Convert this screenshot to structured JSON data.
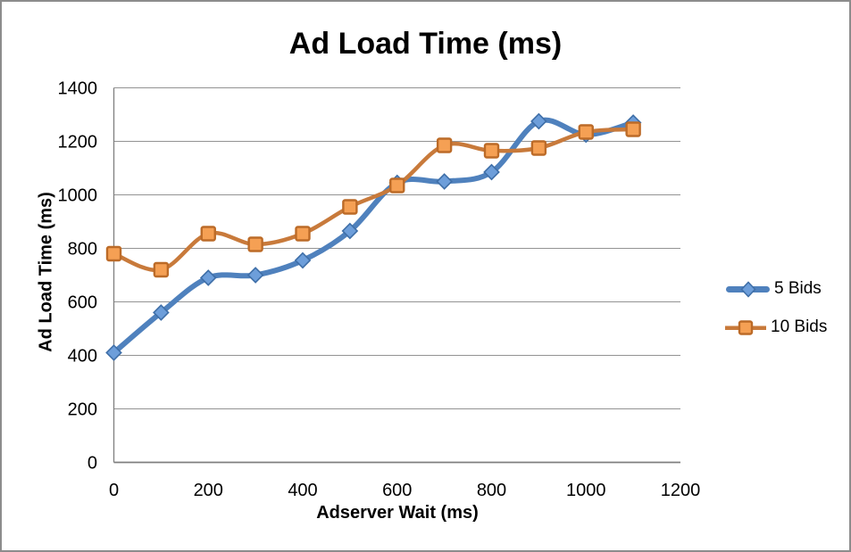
{
  "frame": {
    "background": "#ffffff",
    "border_color": "#8c8c8c"
  },
  "chart_data": {
    "type": "line",
    "title": "Ad Load Time (ms)",
    "xlabel": "Adserver Wait (ms)",
    "ylabel": "Ad Load Time (ms)",
    "x": [
      0,
      100,
      200,
      300,
      400,
      500,
      600,
      700,
      800,
      900,
      1000,
      1100
    ],
    "series": [
      {
        "name": "5 Bids",
        "values": [
          410,
          560,
          690,
          700,
          755,
          865,
          1045,
          1050,
          1085,
          1275,
          1225,
          1270
        ],
        "color": "#4F81BD",
        "marker": "diamond",
        "marker_fill": "#6D9EDA",
        "marker_stroke": "#3F6FA8"
      },
      {
        "name": "10 Bids",
        "values": [
          780,
          720,
          855,
          815,
          855,
          955,
          1035,
          1185,
          1165,
          1175,
          1235,
          1245
        ],
        "color": "#C87A3B",
        "marker": "square",
        "marker_fill": "#F5A054",
        "marker_stroke": "#BC6B28"
      }
    ],
    "xlim": [
      0,
      1200
    ],
    "ylim": [
      0,
      1400
    ],
    "x_ticks": [
      0,
      200,
      400,
      600,
      800,
      1000,
      1200
    ],
    "y_ticks": [
      0,
      200,
      400,
      600,
      800,
      1000,
      1200,
      1400
    ],
    "grid": "horizontal-only",
    "gridline_color": "#939393",
    "axis_line_color": "#7f7f7f",
    "legend_position": "right",
    "smooth_lines": true
  }
}
